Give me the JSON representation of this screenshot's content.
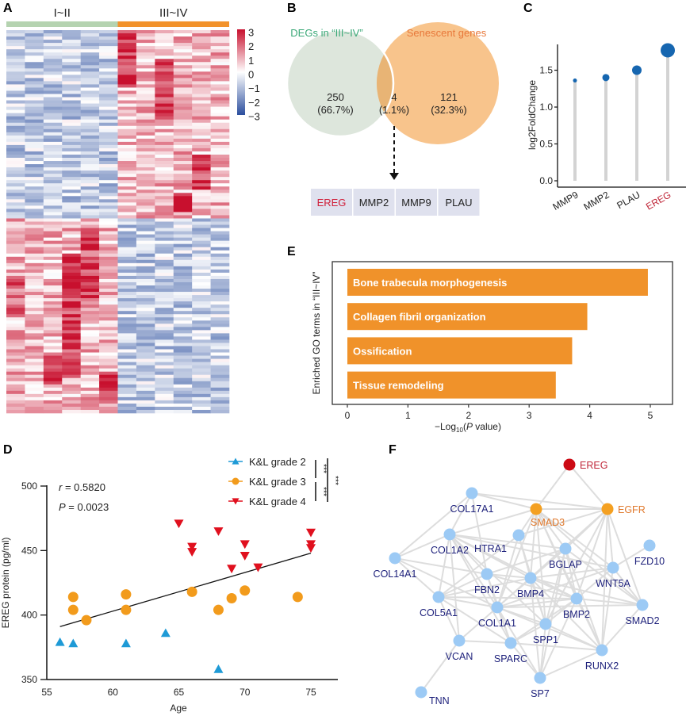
{
  "panels": {
    "A": "A",
    "B": "B",
    "C": "C",
    "D": "D",
    "E": "E",
    "F": "F"
  },
  "chart_data": [
    {
      "id": "A",
      "type": "heatmap",
      "groups": [
        {
          "label": "I~II",
          "color": "#b5d3b0",
          "columns": 6
        },
        {
          "label": "III~IV",
          "color": "#f2922b",
          "columns": 6
        }
      ],
      "colorbar": {
        "ticks": [
          "3",
          "2",
          "1",
          "0",
          "−1",
          "−2",
          "−3"
        ],
        "range": [
          -3,
          3
        ],
        "low_color": "#2b4e9e",
        "mid_color": "#ffffff",
        "high_color": "#c8102e"
      },
      "rows_approx": 375,
      "pattern": "top block: III~IV high (red), I~II low (blue); bottom block: I~II high (red), III~IV low (blue)"
    },
    {
      "id": "B",
      "type": "venn",
      "sets": [
        {
          "label": "DEGs in “III~IV”",
          "color": "#3aa877",
          "fill": "#dde6dc",
          "only_count": "250",
          "only_pct": "(66.7%)"
        },
        {
          "label": "Senescent genes",
          "color": "#e8783a",
          "fill": "#f8c48c",
          "only_count": "121",
          "only_pct": "(32.3%)"
        }
      ],
      "intersection": {
        "count": "4",
        "pct": "(1.1%)",
        "fill": "#e8b475"
      },
      "genes": [
        {
          "name": "EREG",
          "color": "#d0203a"
        },
        {
          "name": "MMP2",
          "color": "#222222"
        },
        {
          "name": "MMP9",
          "color": "#222222"
        },
        {
          "name": "PLAU",
          "color": "#222222"
        }
      ]
    },
    {
      "id": "C",
      "type": "lollipop",
      "ylabel": "log2FoldChange",
      "ylim": [
        0,
        1.85
      ],
      "yticks": [
        "0.0",
        "0.5",
        "1.0",
        "1.5"
      ],
      "categories": [
        "MMP9",
        "MMP2",
        "PLAU",
        "EREG"
      ],
      "category_colors": [
        "#222222",
        "#222222",
        "#222222",
        "#c0283a"
      ],
      "values": [
        1.36,
        1.4,
        1.5,
        1.77
      ],
      "point_size_rank": [
        1,
        2,
        3,
        4
      ],
      "point_color": "#1666b0",
      "stem_color": "#d3d3d3"
    },
    {
      "id": "E",
      "type": "bar",
      "orientation": "horizontal",
      "ylabel": "Enriched GO terms in “III~IV”",
      "xlabel_prefix": "−Log",
      "xlabel_sub": "10",
      "xlabel_open": "(",
      "xlabel_italic": "P",
      "xlabel_suffix": " value)",
      "xlim": [
        0,
        5.2
      ],
      "xticks": [
        "0",
        "1",
        "2",
        "3",
        "4",
        "5"
      ],
      "categories": [
        "Bone trabecula morphogenesis",
        "Collagen fibril organization",
        "Ossification",
        "Tissue remodeling"
      ],
      "values": [
        4.96,
        3.96,
        3.71,
        3.44
      ],
      "bar_color": "#f0922a"
    },
    {
      "id": "D",
      "type": "scatter",
      "xlabel": "Age",
      "ylabel": "EREG protein (pg/ml)",
      "xlim": [
        55,
        77
      ],
      "ylim": [
        350,
        500
      ],
      "xticks": [
        "55",
        "60",
        "65",
        "70",
        "75"
      ],
      "yticks": [
        "350",
        "400",
        "450",
        "500"
      ],
      "annotation_r": "r = 0.5820",
      "annotation_p": "P = 0.0023",
      "regression": {
        "x": [
          56,
          75
        ],
        "y": [
          391,
          448
        ]
      },
      "series": [
        {
          "name": "K&L grade 2",
          "marker": "triangle-up",
          "color": "#1e9ad6",
          "points": [
            [
              56,
              379
            ],
            [
              57,
              378
            ],
            [
              61,
              378
            ],
            [
              64,
              386
            ],
            [
              68,
              358
            ]
          ]
        },
        {
          "name": "K&L grade 3",
          "marker": "circle",
          "color": "#f29b1c",
          "points": [
            [
              57,
              414
            ],
            [
              57,
              404
            ],
            [
              58,
              396
            ],
            [
              61,
              416
            ],
            [
              61,
              404
            ],
            [
              66,
              418
            ],
            [
              68,
              404
            ],
            [
              69,
              413
            ],
            [
              70,
              419
            ],
            [
              74,
              414
            ]
          ]
        },
        {
          "name": "K&L grade 4",
          "marker": "triangle-down",
          "color": "#e0101e",
          "points": [
            [
              65,
              471
            ],
            [
              66,
              453
            ],
            [
              66,
              449
            ],
            [
              68,
              465
            ],
            [
              69,
              436
            ],
            [
              70,
              455
            ],
            [
              70,
              446
            ],
            [
              71,
              437
            ],
            [
              75,
              464
            ],
            [
              75,
              455
            ],
            [
              75,
              452
            ]
          ]
        }
      ],
      "significance": [
        "***",
        "***",
        "***"
      ]
    },
    {
      "id": "F",
      "type": "network",
      "edge_color": "#dddddd",
      "nodes": [
        {
          "id": "EREG",
          "color": "#cc0a14",
          "label_color": "#c0283a"
        },
        {
          "id": "EGFR",
          "color": "#f4a021",
          "label_color": "#e07a2e"
        },
        {
          "id": "SMAD3",
          "color": "#f4a021",
          "label_color": "#e07a2e"
        },
        {
          "id": "COL17A1",
          "color": "#9ccaf5",
          "label_color": "#1c1f7a"
        },
        {
          "id": "COL1A2",
          "color": "#9ccaf5",
          "label_color": "#1c1f7a"
        },
        {
          "id": "HTRA1",
          "color": "#9ccaf5",
          "label_color": "#1c1f7a"
        },
        {
          "id": "BGLAP",
          "color": "#9ccaf5",
          "label_color": "#1c1f7a"
        },
        {
          "id": "FZD10",
          "color": "#9ccaf5",
          "label_color": "#1c1f7a"
        },
        {
          "id": "COL14A1",
          "color": "#9ccaf5",
          "label_color": "#1c1f7a"
        },
        {
          "id": "FBN2",
          "color": "#9ccaf5",
          "label_color": "#1c1f7a"
        },
        {
          "id": "BMP4",
          "color": "#9ccaf5",
          "label_color": "#1c1f7a"
        },
        {
          "id": "WNT5A",
          "color": "#9ccaf5",
          "label_color": "#1c1f7a"
        },
        {
          "id": "COL5A1",
          "color": "#9ccaf5",
          "label_color": "#1c1f7a"
        },
        {
          "id": "COL1A1",
          "color": "#9ccaf5",
          "label_color": "#1c1f7a"
        },
        {
          "id": "BMP2",
          "color": "#9ccaf5",
          "label_color": "#1c1f7a"
        },
        {
          "id": "SMAD2",
          "color": "#9ccaf5",
          "label_color": "#1c1f7a"
        },
        {
          "id": "SPP1",
          "color": "#9ccaf5",
          "label_color": "#1c1f7a"
        },
        {
          "id": "VCAN",
          "color": "#9ccaf5",
          "label_color": "#1c1f7a"
        },
        {
          "id": "SPARC",
          "color": "#9ccaf5",
          "label_color": "#1c1f7a"
        },
        {
          "id": "RUNX2",
          "color": "#9ccaf5",
          "label_color": "#1c1f7a"
        },
        {
          "id": "SP7",
          "color": "#9ccaf5",
          "label_color": "#1c1f7a"
        },
        {
          "id": "TNN",
          "color": "#9ccaf5",
          "label_color": "#1c1f7a"
        }
      ],
      "edges": [
        [
          "EREG",
          "EGFR"
        ],
        [
          "EREG",
          "SMAD3"
        ],
        [
          "COL17A1",
          "EGFR"
        ],
        [
          "COL17A1",
          "SMAD3"
        ],
        [
          "COL17A1",
          "COL1A2"
        ],
        [
          "COL17A1",
          "COL14A1"
        ],
        [
          "COL17A1",
          "FBN2"
        ],
        [
          "SMAD3",
          "EGFR"
        ],
        [
          "SMAD3",
          "COL1A2"
        ],
        [
          "SMAD3",
          "HTRA1"
        ],
        [
          "SMAD3",
          "BMP4"
        ],
        [
          "SMAD3",
          "BMP2"
        ],
        [
          "SMAD3",
          "COL1A1"
        ],
        [
          "SMAD3",
          "SMAD2"
        ],
        [
          "SMAD3",
          "RUNX2"
        ],
        [
          "SMAD3",
          "SPP1"
        ],
        [
          "SMAD3",
          "BGLAP"
        ],
        [
          "SMAD3",
          "WNT5A"
        ],
        [
          "EGFR",
          "BGLAP"
        ],
        [
          "EGFR",
          "WNT5A"
        ],
        [
          "EGFR",
          "BMP2"
        ],
        [
          "EGFR",
          "SMAD2"
        ],
        [
          "EGFR",
          "COL1A1"
        ],
        [
          "EGFR",
          "BMP4"
        ],
        [
          "EGFR",
          "SPP1"
        ],
        [
          "EGFR",
          "RUNX2"
        ],
        [
          "EGFR",
          "HTRA1"
        ],
        [
          "COL1A2",
          "COL14A1"
        ],
        [
          "COL1A2",
          "COL5A1"
        ],
        [
          "COL1A2",
          "COL1A1"
        ],
        [
          "COL1A2",
          "FBN2"
        ],
        [
          "COL1A2",
          "SPARC"
        ],
        [
          "COL1A2",
          "BMP4"
        ],
        [
          "COL1A2",
          "BMP2"
        ],
        [
          "COL1A2",
          "SPP1"
        ],
        [
          "COL1A2",
          "BGLAP"
        ],
        [
          "COL1A2",
          "VCAN"
        ],
        [
          "COL1A2",
          "WNT5A"
        ],
        [
          "HTRA1",
          "COL1A1"
        ],
        [
          "HTRA1",
          "BMP4"
        ],
        [
          "HTRA1",
          "SPP1"
        ],
        [
          "HTRA1",
          "COL5A1"
        ],
        [
          "BGLAP",
          "BMP2"
        ],
        [
          "BGLAP",
          "SPP1"
        ],
        [
          "BGLAP",
          "RUNX2"
        ],
        [
          "BGLAP",
          "COL1A1"
        ],
        [
          "BGLAP",
          "BMP4"
        ],
        [
          "BGLAP",
          "SP7"
        ],
        [
          "BGLAP",
          "SMAD2"
        ],
        [
          "BGLAP",
          "FBN2"
        ],
        [
          "FZD10",
          "WNT5A"
        ],
        [
          "COL14A1",
          "COL5A1"
        ],
        [
          "COL14A1",
          "COL1A1"
        ],
        [
          "COL14A1",
          "FBN2"
        ],
        [
          "FBN2",
          "COL1A1"
        ],
        [
          "FBN2",
          "COL5A1"
        ],
        [
          "FBN2",
          "BMP4"
        ],
        [
          "FBN2",
          "SPARC"
        ],
        [
          "FBN2",
          "BMP2"
        ],
        [
          "BMP4",
          "BMP2"
        ],
        [
          "BMP4",
          "COL1A1"
        ],
        [
          "BMP4",
          "RUNX2"
        ],
        [
          "BMP4",
          "SP7"
        ],
        [
          "BMP4",
          "SPP1"
        ],
        [
          "BMP4",
          "WNT5A"
        ],
        [
          "BMP4",
          "SMAD2"
        ],
        [
          "WNT5A",
          "SMAD2"
        ],
        [
          "WNT5A",
          "RUNX2"
        ],
        [
          "WNT5A",
          "BMP2"
        ],
        [
          "WNT5A",
          "COL1A1"
        ],
        [
          "COL5A1",
          "COL1A1"
        ],
        [
          "COL5A1",
          "VCAN"
        ],
        [
          "COL5A1",
          "SPARC"
        ],
        [
          "COL5A1",
          "BMP4"
        ],
        [
          "COL5A1",
          "BMP2"
        ],
        [
          "COL1A1",
          "SPARC"
        ],
        [
          "COL1A1",
          "SPP1"
        ],
        [
          "COL1A1",
          "BMP2"
        ],
        [
          "COL1A1",
          "VCAN"
        ],
        [
          "COL1A1",
          "RUNX2"
        ],
        [
          "COL1A1",
          "SP7"
        ],
        [
          "COL1A1",
          "SMAD2"
        ],
        [
          "BMP2",
          "RUNX2"
        ],
        [
          "BMP2",
          "SP7"
        ],
        [
          "BMP2",
          "SMAD2"
        ],
        [
          "BMP2",
          "SPP1"
        ],
        [
          "BMP2",
          "SPARC"
        ],
        [
          "SMAD2",
          "RUNX2"
        ],
        [
          "SPP1",
          "SPARC"
        ],
        [
          "SPP1",
          "RUNX2"
        ],
        [
          "SPP1",
          "SP7"
        ],
        [
          "VCAN",
          "SPARC"
        ],
        [
          "VCAN",
          "TNN"
        ],
        [
          "SPARC",
          "SP7"
        ],
        [
          "SPARC",
          "RUNX2"
        ],
        [
          "RUNX2",
          "SP7"
        ]
      ]
    }
  ]
}
